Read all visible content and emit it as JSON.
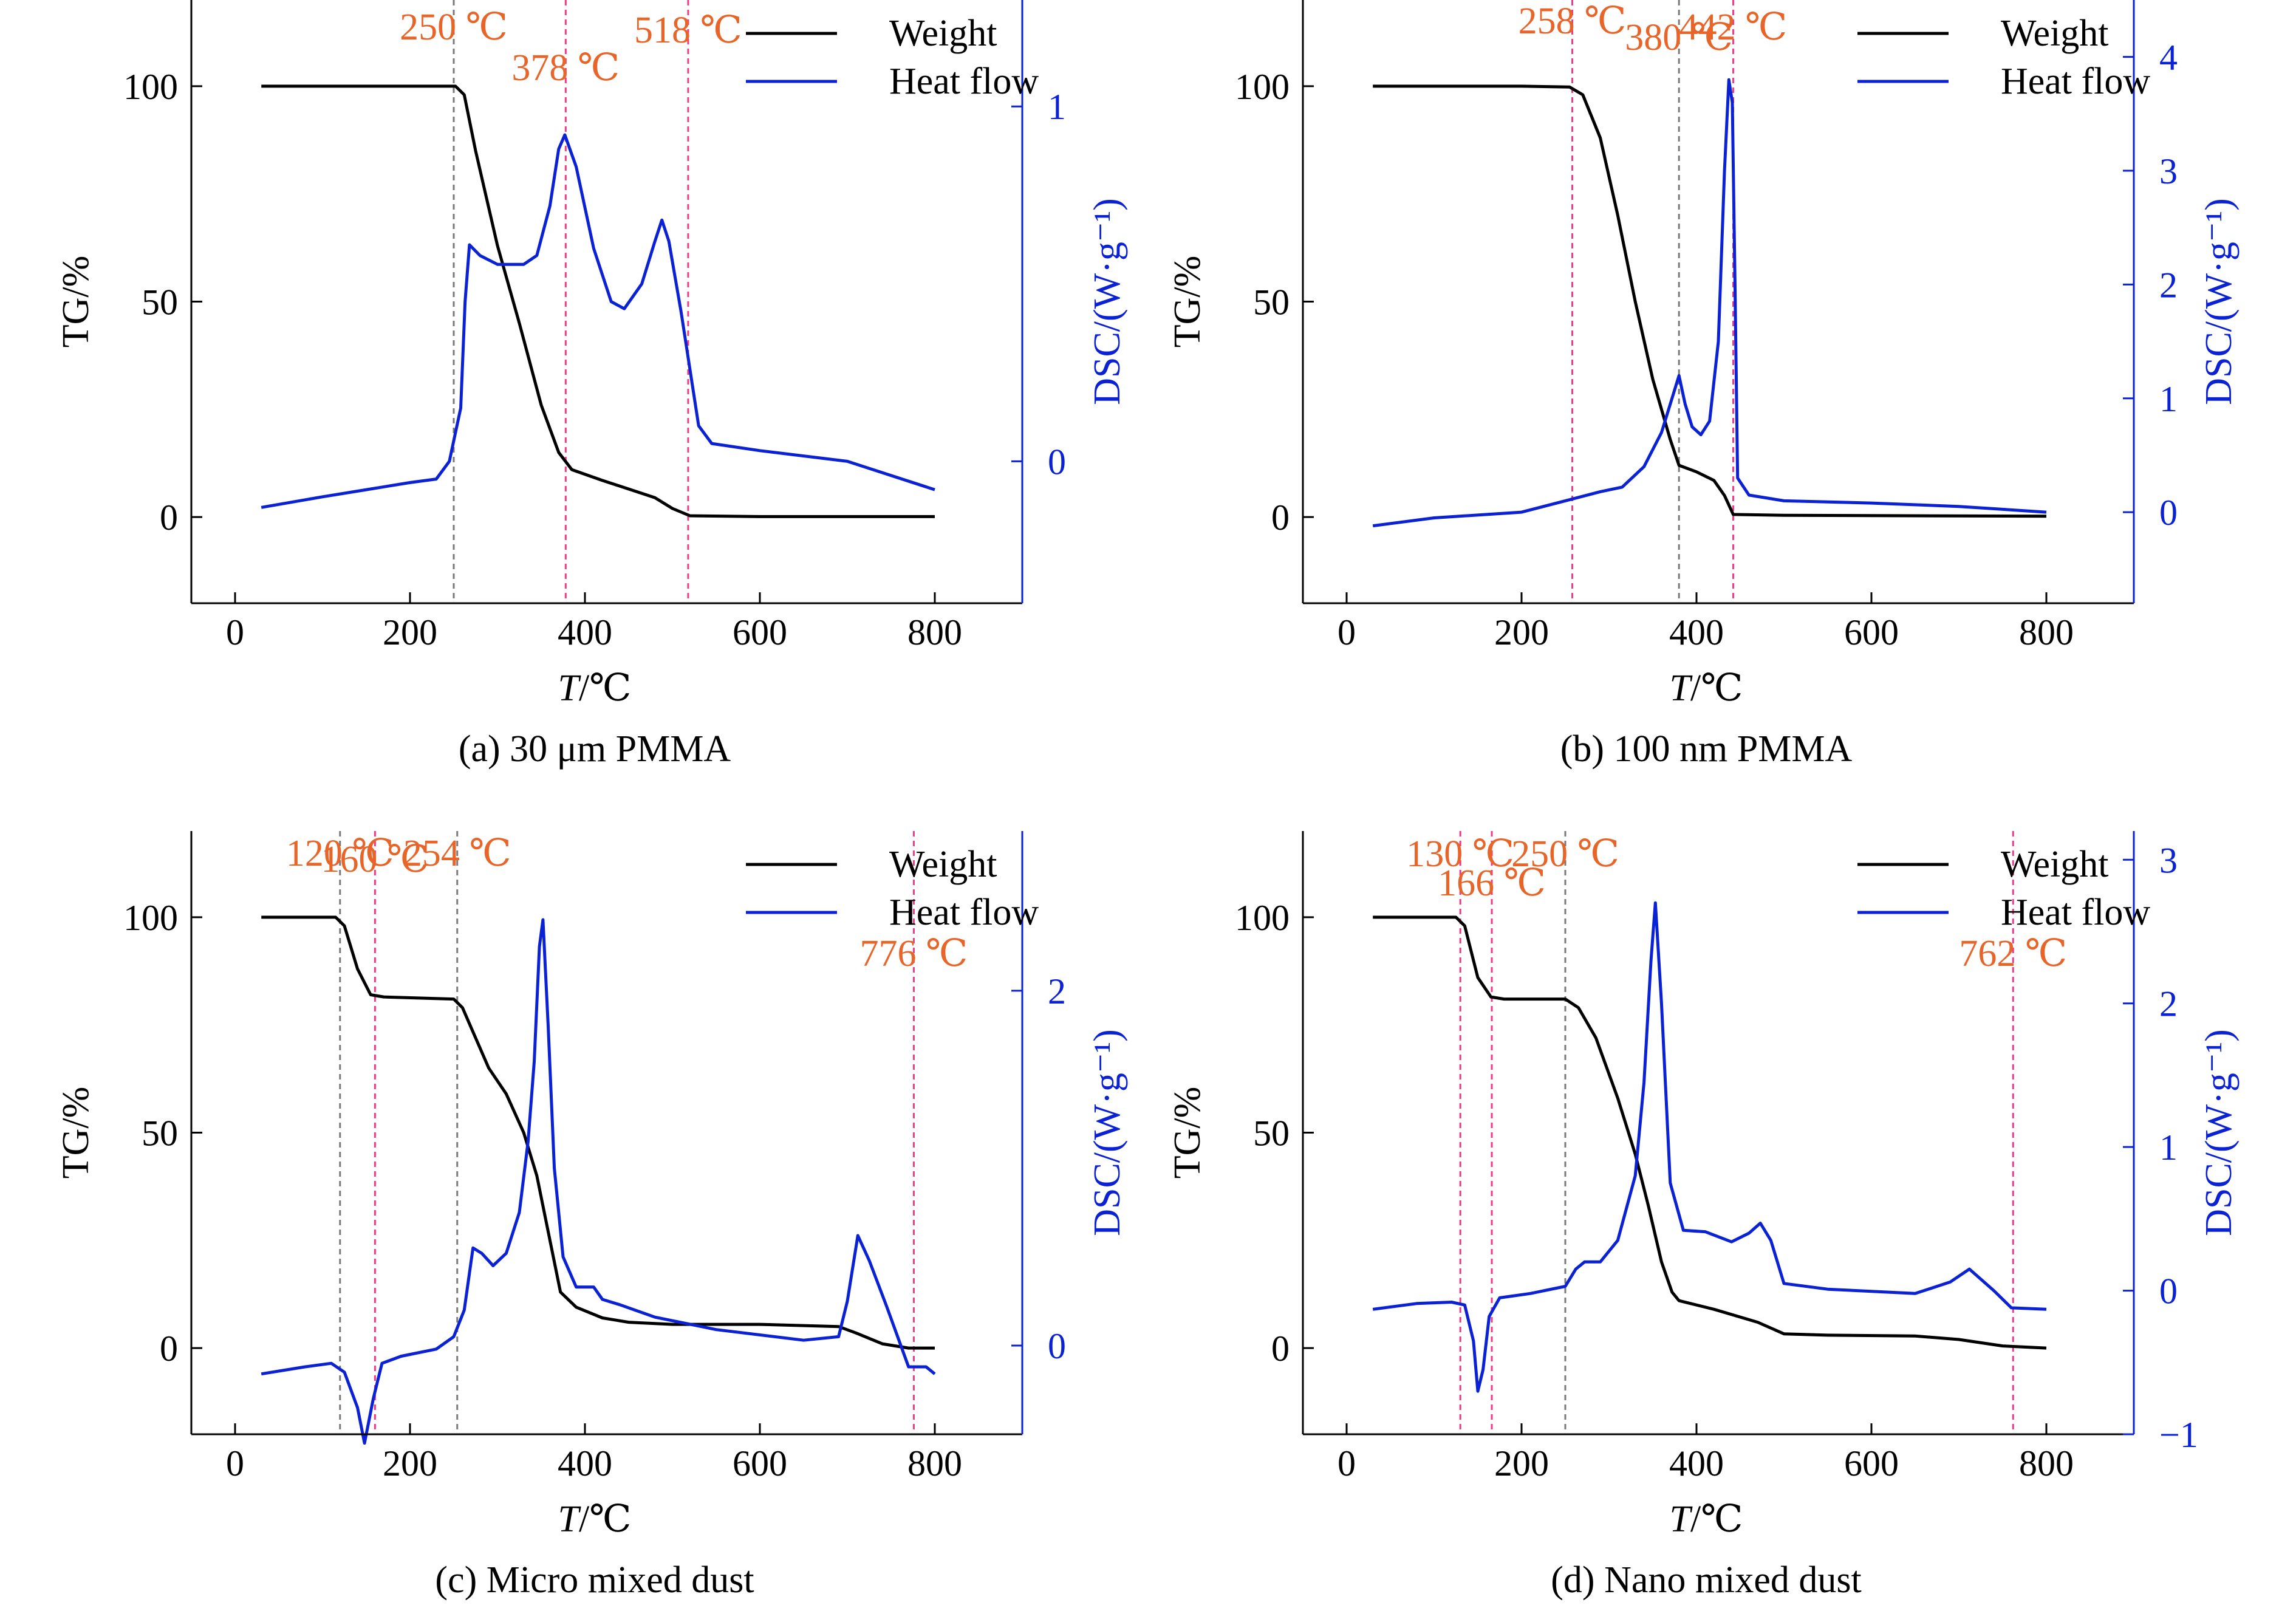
{
  "colors": {
    "weight": "#000000",
    "heat_flow": "#0a22d4",
    "right_axis": "#0a22d4",
    "annotation_text": "#e8652a",
    "marker_pink": "#ee3b8a",
    "marker_gray": "#7a7a7a"
  },
  "chart_data": [
    {
      "type": "line",
      "caption": "(a) 30 μm PMMA",
      "xlabel": "T/℃",
      "ylabel_left": "TG/%",
      "ylabel_right": "DSC/(W·g⁻¹)",
      "xlim": [
        -50,
        900
      ],
      "ylim_left": [
        -20,
        120
      ],
      "ylim_right": [
        -0.4,
        1.3
      ],
      "xticks": [
        0,
        200,
        400,
        600,
        800
      ],
      "yticks_left": [
        0,
        50,
        100
      ],
      "yticks_right": [
        0,
        1
      ],
      "legend": [
        "Weight",
        "Heat flow"
      ],
      "legend_position": "top-right",
      "markers": [
        {
          "x": 250,
          "label": "250 ℃",
          "style": "gray"
        },
        {
          "x": 378,
          "label": "378 ℃",
          "style": "pink"
        },
        {
          "x": 518,
          "label": "518 ℃",
          "style": "pink"
        }
      ],
      "series": [
        {
          "name": "Weight",
          "axis": "left",
          "points": [
            [
              30,
              100
            ],
            [
              240,
              100
            ],
            [
              252,
              100
            ],
            [
              262,
              98
            ],
            [
              275,
              85
            ],
            [
              300,
              63
            ],
            [
              325,
              45
            ],
            [
              350,
              26
            ],
            [
              370,
              15
            ],
            [
              385,
              11
            ],
            [
              420,
              8.5
            ],
            [
              450,
              6.5
            ],
            [
              480,
              4.5
            ],
            [
              500,
              2
            ],
            [
              520,
              0.3
            ],
            [
              600,
              0.1
            ],
            [
              800,
              0.1
            ]
          ]
        },
        {
          "name": "Heat flow",
          "axis": "right",
          "points": [
            [
              30,
              -0.13
            ],
            [
              100,
              -0.1
            ],
            [
              150,
              -0.08
            ],
            [
              200,
              -0.06
            ],
            [
              230,
              -0.05
            ],
            [
              245,
              0.0
            ],
            [
              258,
              0.15
            ],
            [
              263,
              0.45
            ],
            [
              268,
              0.61
            ],
            [
              280,
              0.58
            ],
            [
              300,
              0.555
            ],
            [
              330,
              0.555
            ],
            [
              345,
              0.58
            ],
            [
              360,
              0.72
            ],
            [
              370,
              0.88
            ],
            [
              377,
              0.92
            ],
            [
              390,
              0.83
            ],
            [
              410,
              0.6
            ],
            [
              430,
              0.45
            ],
            [
              445,
              0.43
            ],
            [
              465,
              0.5
            ],
            [
              480,
              0.62
            ],
            [
              488,
              0.68
            ],
            [
              496,
              0.62
            ],
            [
              510,
              0.42
            ],
            [
              530,
              0.1
            ],
            [
              545,
              0.05
            ],
            [
              600,
              0.03
            ],
            [
              700,
              0.0
            ],
            [
              800,
              -0.08
            ]
          ]
        }
      ]
    },
    {
      "type": "line",
      "caption": "(b) 100 nm PMMA",
      "xlabel": "T/℃",
      "ylabel_left": "TG/%",
      "ylabel_right": "DSC/(W·g⁻¹)",
      "xlim": [
        -50,
        900
      ],
      "ylim_left": [
        -20,
        120
      ],
      "ylim_right": [
        -0.8,
        4.5
      ],
      "xticks": [
        0,
        200,
        400,
        600,
        800
      ],
      "yticks_left": [
        0,
        50,
        100
      ],
      "yticks_right": [
        0,
        1,
        2,
        3,
        4
      ],
      "legend": [
        "Weight",
        "Heat flow"
      ],
      "legend_position": "top-right",
      "markers": [
        {
          "x": 258,
          "label": "258 ℃",
          "style": "pink"
        },
        {
          "x": 380,
          "label": "380 ℃",
          "style": "gray"
        },
        {
          "x": 442,
          "label": "442 ℃",
          "style": "pink"
        }
      ],
      "series": [
        {
          "name": "Weight",
          "axis": "left",
          "points": [
            [
              30,
              100
            ],
            [
              200,
              100
            ],
            [
              255,
              99.8
            ],
            [
              270,
              98
            ],
            [
              290,
              88
            ],
            [
              310,
              70
            ],
            [
              330,
              50
            ],
            [
              350,
              32
            ],
            [
              370,
              18
            ],
            [
              380,
              12
            ],
            [
              400,
              10.5
            ],
            [
              420,
              8.5
            ],
            [
              432,
              5
            ],
            [
              442,
              0.6
            ],
            [
              500,
              0.4
            ],
            [
              800,
              0.2
            ]
          ]
        },
        {
          "name": "Heat flow",
          "axis": "right",
          "points": [
            [
              30,
              -0.12
            ],
            [
              100,
              -0.05
            ],
            [
              200,
              0.0
            ],
            [
              250,
              0.1
            ],
            [
              290,
              0.18
            ],
            [
              315,
              0.22
            ],
            [
              340,
              0.4
            ],
            [
              360,
              0.7
            ],
            [
              372,
              1.0
            ],
            [
              380,
              1.2
            ],
            [
              387,
              0.95
            ],
            [
              395,
              0.75
            ],
            [
              405,
              0.68
            ],
            [
              415,
              0.8
            ],
            [
              425,
              1.5
            ],
            [
              432,
              3.0
            ],
            [
              437,
              3.8
            ],
            [
              441,
              3.6
            ],
            [
              444,
              2.0
            ],
            [
              447,
              0.3
            ],
            [
              460,
              0.15
            ],
            [
              500,
              0.1
            ],
            [
              600,
              0.08
            ],
            [
              700,
              0.05
            ],
            [
              800,
              0.0
            ]
          ]
        }
      ]
    },
    {
      "type": "line",
      "caption": "(c) Micro mixed dust",
      "xlabel": "T/℃",
      "ylabel_left": "TG/%",
      "ylabel_right": "DSC/(W·g⁻¹)",
      "xlim": [
        -50,
        900
      ],
      "ylim_left": [
        -20,
        120
      ],
      "ylim_right": [
        -0.5,
        2.9
      ],
      "xticks": [
        0,
        200,
        400,
        600,
        800
      ],
      "yticks_left": [
        0,
        50,
        100
      ],
      "yticks_right": [
        0,
        2
      ],
      "legend": [
        "Weight",
        "Heat flow"
      ],
      "legend_position": "top-right",
      "markers": [
        {
          "x": 120,
          "label": "120 ℃",
          "style": "gray"
        },
        {
          "x": 160,
          "label": "160 ℃",
          "style": "pink"
        },
        {
          "x": 254,
          "label": "254 ℃",
          "style": "gray"
        },
        {
          "x": 776,
          "label": "776 ℃",
          "style": "pink"
        }
      ],
      "series": [
        {
          "name": "Weight",
          "axis": "left",
          "points": [
            [
              30,
              100
            ],
            [
              115,
              100
            ],
            [
              125,
              98
            ],
            [
              140,
              88
            ],
            [
              155,
              82
            ],
            [
              170,
              81.5
            ],
            [
              250,
              81
            ],
            [
              260,
              79
            ],
            [
              275,
              72
            ],
            [
              290,
              65
            ],
            [
              310,
              59
            ],
            [
              330,
              50
            ],
            [
              345,
              40
            ],
            [
              360,
              25
            ],
            [
              372,
              13
            ],
            [
              390,
              9.5
            ],
            [
              420,
              7
            ],
            [
              450,
              6
            ],
            [
              500,
              5.5
            ],
            [
              600,
              5.5
            ],
            [
              690,
              5
            ],
            [
              710,
              3.5
            ],
            [
              740,
              1
            ],
            [
              770,
              0
            ],
            [
              800,
              0
            ]
          ]
        },
        {
          "name": "Heat flow",
          "axis": "right",
          "points": [
            [
              30,
              -0.16
            ],
            [
              80,
              -0.12
            ],
            [
              110,
              -0.1
            ],
            [
              125,
              -0.15
            ],
            [
              140,
              -0.35
            ],
            [
              148,
              -0.55
            ],
            [
              158,
              -0.3
            ],
            [
              168,
              -0.1
            ],
            [
              190,
              -0.06
            ],
            [
              230,
              -0.02
            ],
            [
              250,
              0.05
            ],
            [
              262,
              0.2
            ],
            [
              272,
              0.55
            ],
            [
              282,
              0.52
            ],
            [
              295,
              0.45
            ],
            [
              310,
              0.52
            ],
            [
              325,
              0.75
            ],
            [
              335,
              1.15
            ],
            [
              342,
              1.6
            ],
            [
              348,
              2.25
            ],
            [
              352,
              2.4
            ],
            [
              358,
              1.8
            ],
            [
              365,
              1.0
            ],
            [
              375,
              0.5
            ],
            [
              390,
              0.33
            ],
            [
              410,
              0.33
            ],
            [
              420,
              0.26
            ],
            [
              440,
              0.23
            ],
            [
              480,
              0.16
            ],
            [
              550,
              0.09
            ],
            [
              650,
              0.03
            ],
            [
              690,
              0.05
            ],
            [
              700,
              0.25
            ],
            [
              712,
              0.62
            ],
            [
              725,
              0.48
            ],
            [
              745,
              0.22
            ],
            [
              770,
              -0.12
            ],
            [
              790,
              -0.12
            ],
            [
              800,
              -0.16
            ]
          ]
        }
      ]
    },
    {
      "type": "line",
      "caption": "(d) Nano mixed dust",
      "xlabel": "T/℃",
      "ylabel_left": "TG/%",
      "ylabel_right": "DSC/(W·g⁻¹)",
      "xlim": [
        -50,
        900
      ],
      "ylim_left": [
        -20,
        120
      ],
      "ylim_right": [
        -1.0,
        3.2
      ],
      "xticks": [
        0,
        200,
        400,
        600,
        800
      ],
      "yticks_left": [
        0,
        50,
        100
      ],
      "yticks_right": [
        -1,
        0,
        1,
        2,
        3
      ],
      "legend": [
        "Weight",
        "Heat flow"
      ],
      "legend_position": "top-right",
      "markers": [
        {
          "x": 130,
          "label": "130 ℃",
          "style": "pink"
        },
        {
          "x": 166,
          "label": "166 ℃",
          "style": "pink"
        },
        {
          "x": 250,
          "label": "250 ℃",
          "style": "gray"
        },
        {
          "x": 762,
          "label": "762 ℃",
          "style": "pink"
        }
      ],
      "series": [
        {
          "name": "Weight",
          "axis": "left",
          "points": [
            [
              30,
              100
            ],
            [
              125,
              100
            ],
            [
              135,
              98
            ],
            [
              150,
              86
            ],
            [
              165,
              81.5
            ],
            [
              180,
              81
            ],
            [
              250,
              81
            ],
            [
              265,
              79
            ],
            [
              285,
              72
            ],
            [
              310,
              58
            ],
            [
              330,
              45
            ],
            [
              345,
              33
            ],
            [
              360,
              20
            ],
            [
              372,
              13
            ],
            [
              380,
              11
            ],
            [
              420,
              9
            ],
            [
              470,
              6
            ],
            [
              500,
              3.3
            ],
            [
              550,
              3
            ],
            [
              650,
              2.8
            ],
            [
              700,
              2
            ],
            [
              750,
              0.5
            ],
            [
              800,
              0
            ]
          ]
        },
        {
          "name": "Heat flow",
          "axis": "right",
          "points": [
            [
              30,
              -0.13
            ],
            [
              80,
              -0.09
            ],
            [
              120,
              -0.08
            ],
            [
              135,
              -0.1
            ],
            [
              145,
              -0.35
            ],
            [
              150,
              -0.7
            ],
            [
              156,
              -0.55
            ],
            [
              163,
              -0.18
            ],
            [
              175,
              -0.05
            ],
            [
              210,
              -0.02
            ],
            [
              250,
              0.03
            ],
            [
              262,
              0.15
            ],
            [
              272,
              0.2
            ],
            [
              290,
              0.2
            ],
            [
              310,
              0.35
            ],
            [
              330,
              0.8
            ],
            [
              340,
              1.45
            ],
            [
              348,
              2.3
            ],
            [
              353,
              2.7
            ],
            [
              360,
              2.0
            ],
            [
              370,
              0.75
            ],
            [
              385,
              0.42
            ],
            [
              410,
              0.41
            ],
            [
              440,
              0.34
            ],
            [
              460,
              0.4
            ],
            [
              473,
              0.47
            ],
            [
              485,
              0.35
            ],
            [
              500,
              0.05
            ],
            [
              550,
              0.01
            ],
            [
              650,
              -0.02
            ],
            [
              690,
              0.06
            ],
            [
              712,
              0.15
            ],
            [
              740,
              0.0
            ],
            [
              760,
              -0.12
            ],
            [
              800,
              -0.13
            ]
          ]
        }
      ]
    }
  ]
}
